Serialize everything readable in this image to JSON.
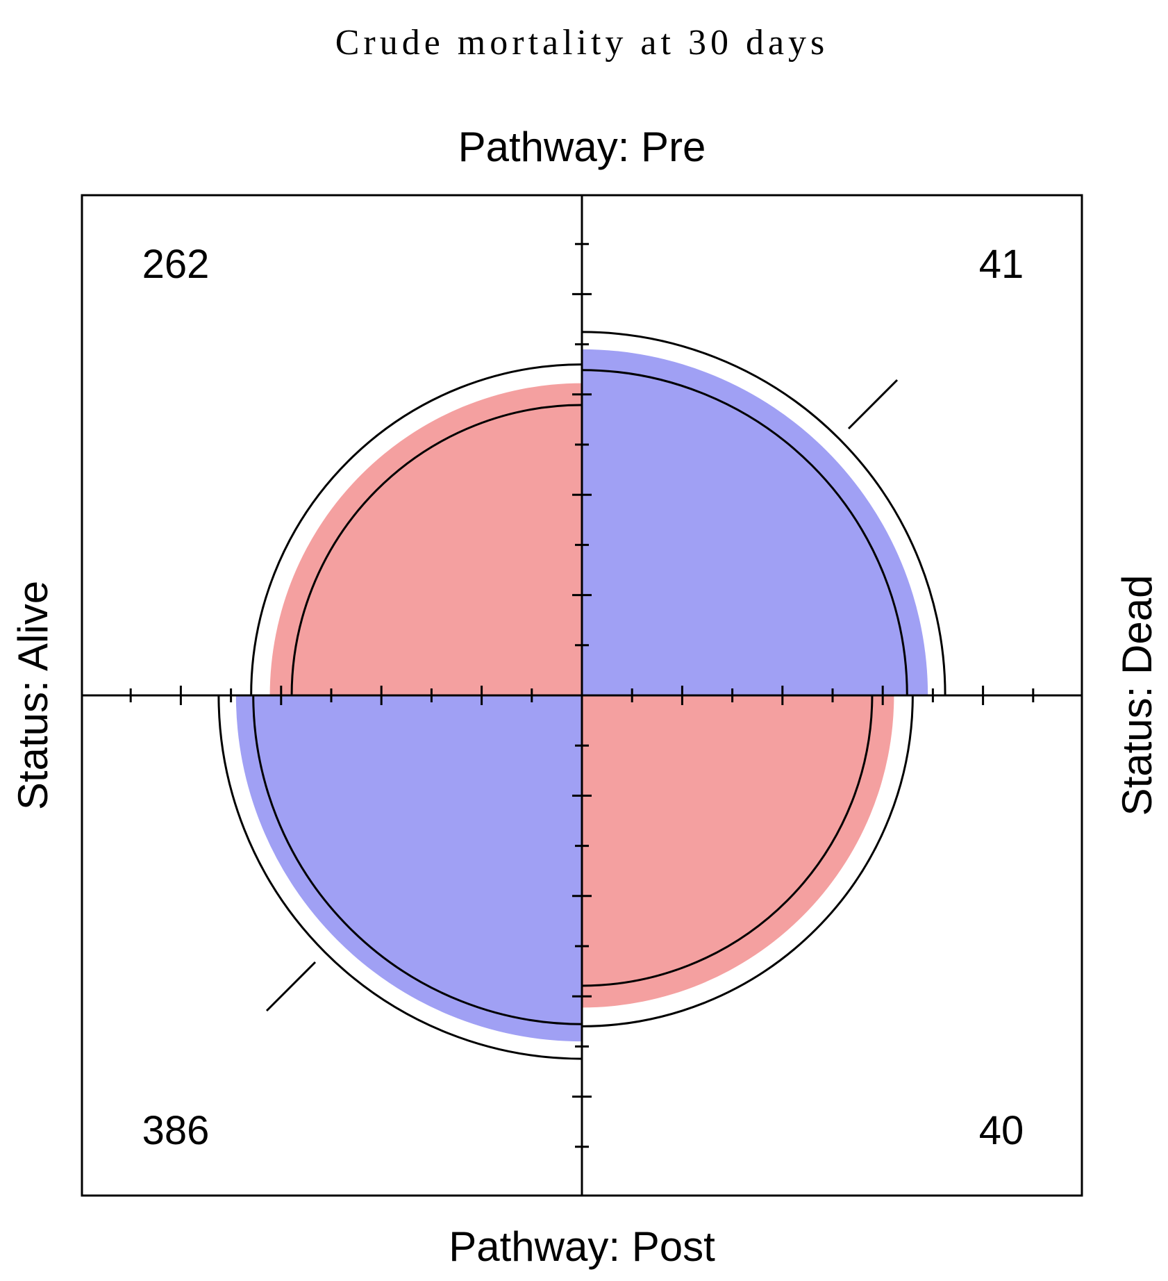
{
  "chart_data": {
    "type": "fourfold",
    "title": "Crude mortality at 30 days",
    "top_label": "Pathway: Pre",
    "bottom_label": "Pathway: Post",
    "left_label": "Status: Alive",
    "right_label": "Status: Dead",
    "cells": [
      {
        "row": "Pre",
        "column": "Alive",
        "count": 262,
        "quadrant": "top-left",
        "color": "#f4a0a0"
      },
      {
        "row": "Pre",
        "column": "Dead",
        "count": 41,
        "quadrant": "top-right",
        "color": "#a0a0f4"
      },
      {
        "row": "Post",
        "column": "Alive",
        "count": 386,
        "quadrant": "bottom-left",
        "color": "#a0a0f4"
      },
      {
        "row": "Post",
        "column": "Dead",
        "count": 40,
        "quadrant": "bottom-right",
        "color": "#f4a0a0"
      }
    ],
    "colors": {
      "positive_association": "#a0a0f4",
      "negative_association": "#f4a0a0",
      "outline": "#000000"
    },
    "confidence_rings": true,
    "grid": false
  }
}
